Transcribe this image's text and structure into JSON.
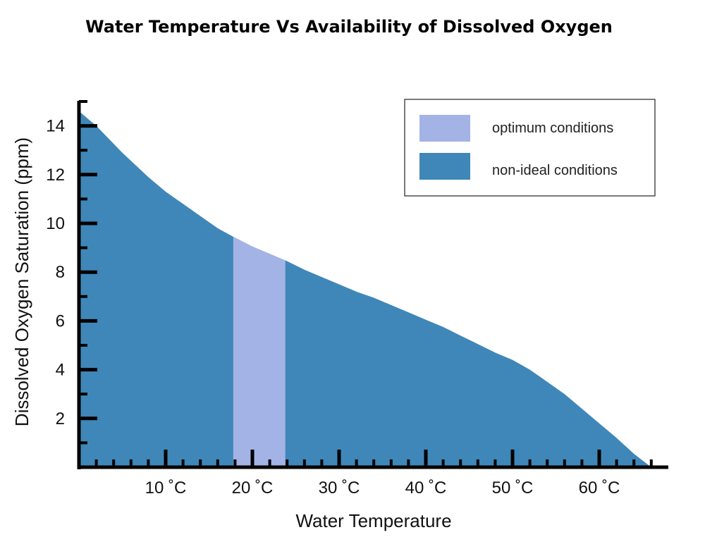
{
  "chart_data": {
    "type": "area",
    "title": "Water Temperature Vs Availability of Dissolved Oxygen",
    "xlabel": "Water Temperature",
    "ylabel": "Dissolved Oxygen Saturation (ppm)",
    "xlim": [
      0,
      68
    ],
    "ylim": [
      0,
      15
    ],
    "x_ticks": [
      10,
      20,
      30,
      40,
      50,
      60
    ],
    "x_tick_labels": [
      "10 ˚C",
      "20 ˚C",
      "30 ˚C",
      "40 ˚C",
      "50 ˚C",
      "60 ˚C"
    ],
    "y_ticks": [
      2,
      4,
      6,
      8,
      10,
      12,
      14
    ],
    "y_tick_labels": [
      "2",
      "4",
      "6",
      "8",
      "10",
      "12",
      "14"
    ],
    "x": [
      0,
      2,
      5,
      8,
      10,
      12,
      14,
      16,
      17.8,
      20,
      22,
      24,
      26,
      28,
      30,
      32,
      34,
      36,
      38,
      40,
      42,
      44,
      46,
      48,
      50,
      52,
      54,
      56,
      58,
      60,
      62,
      64,
      66
    ],
    "y": [
      14.6,
      14.0,
      12.9,
      11.9,
      11.3,
      10.8,
      10.3,
      9.8,
      9.45,
      9.05,
      8.75,
      8.45,
      8.1,
      7.8,
      7.5,
      7.2,
      6.95,
      6.65,
      6.35,
      6.05,
      5.75,
      5.4,
      5.05,
      4.7,
      4.4,
      4.0,
      3.5,
      3.0,
      2.4,
      1.8,
      1.2,
      0.55,
      0.0
    ],
    "series": [
      {
        "name": "optimum conditions",
        "color": "#a4b3e6",
        "x_range": [
          17.8,
          23.8
        ]
      },
      {
        "name": "non-ideal conditions",
        "color": "#3f87b8",
        "x_range": [
          0,
          66
        ]
      }
    ],
    "legend_position": "top-right",
    "grid": false
  }
}
